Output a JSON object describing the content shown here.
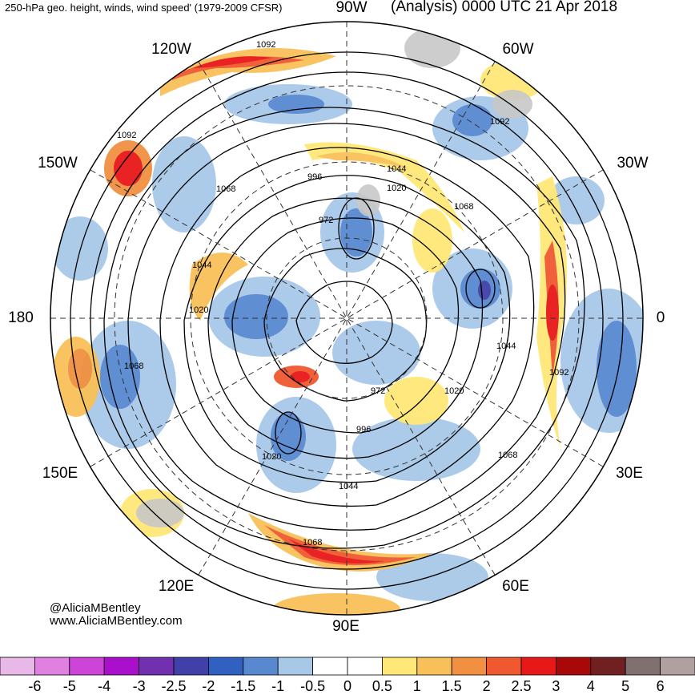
{
  "header": {
    "left_title": "250-hPa geo. height, winds, wind speed' (1979-2009 CFSR)",
    "right_title": "(Analysis) 0000 UTC 21 Apr 2018"
  },
  "credits": {
    "handle": "@AliciaMBentley",
    "website": "www.AliciaMBentley.com"
  },
  "longitude_labels": [
    {
      "text": "90W",
      "id": "90w"
    },
    {
      "text": "60W",
      "id": "60w"
    },
    {
      "text": "30W",
      "id": "30w"
    },
    {
      "text": "0",
      "id": "0"
    },
    {
      "text": "30E",
      "id": "30e"
    },
    {
      "text": "60E",
      "id": "60e"
    },
    {
      "text": "90E",
      "id": "90e"
    },
    {
      "text": "120E",
      "id": "120e"
    },
    {
      "text": "150E",
      "id": "150e"
    },
    {
      "text": "180",
      "id": "180"
    },
    {
      "text": "150W",
      "id": "150w"
    },
    {
      "text": "120W",
      "id": "120w"
    }
  ],
  "contour_labels": [
    "1092",
    "1092",
    "1092",
    "1092",
    "1068",
    "1068",
    "1068",
    "1068",
    "1068",
    "1044",
    "1044",
    "1044",
    "1044",
    "1020",
    "1020",
    "1020",
    "1020",
    "996",
    "996",
    "972",
    "972"
  ],
  "colorbar": {
    "labels": [
      "-6",
      "-5",
      "-4",
      "-3",
      "-2.5",
      "-2",
      "-1.5",
      "-1",
      "-0.5",
      "0",
      "0.5",
      "1",
      "1.5",
      "2",
      "2.5",
      "3",
      "4",
      "5",
      "6"
    ],
    "colors": [
      "#e8b8e8",
      "#e080e0",
      "#cc44d8",
      "#aa10cc",
      "#7030b0",
      "#4040a8",
      "#3060c0",
      "#5888d0",
      "#a8c8e8",
      "#ffffff",
      "#ffffff",
      "#ffe878",
      "#f8c058",
      "#f09040",
      "#f05830",
      "#e81818",
      "#a80808",
      "#702020",
      "#807070",
      "#b0a0a0"
    ]
  }
}
